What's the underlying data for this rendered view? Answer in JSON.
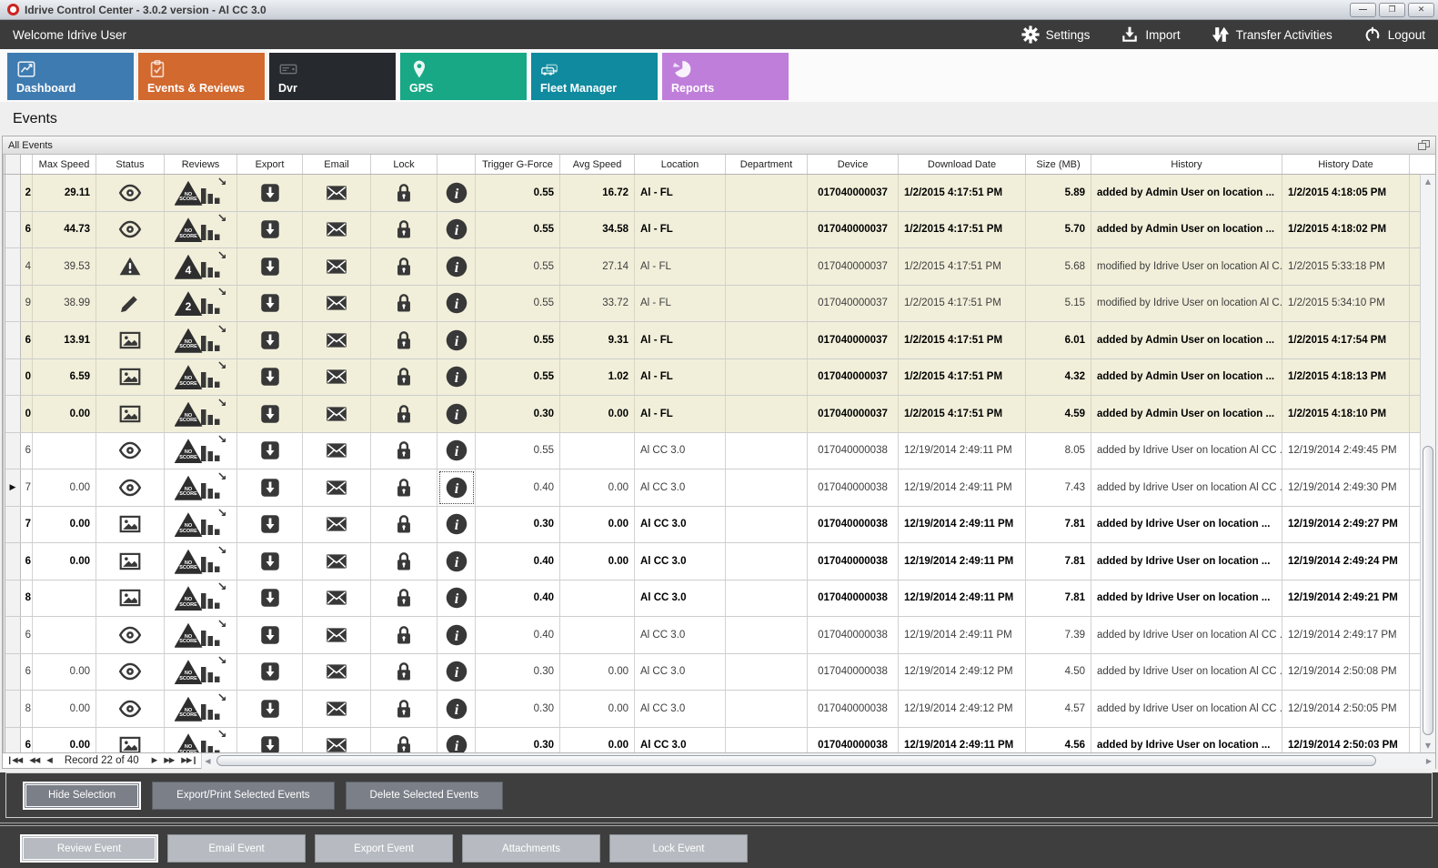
{
  "window": {
    "title": "Idrive Control Center - 3.0.2 version - Al CC 3.0",
    "controls": {
      "minimize": "—",
      "maximize": "❐",
      "close": "✕"
    }
  },
  "topbar": {
    "welcome": "Welcome Idrive User",
    "actions": [
      {
        "icon": "gear-icon",
        "label": "Settings"
      },
      {
        "icon": "import-icon",
        "label": "Import"
      },
      {
        "icon": "transfer-icon",
        "label": "Transfer Activities"
      },
      {
        "icon": "power-icon",
        "label": "Logout"
      }
    ]
  },
  "tabs": [
    {
      "label": "Dashboard",
      "color": "#3e7bb0",
      "icon": "line-chart-icon",
      "active": false
    },
    {
      "label": "Events & Reviews",
      "color": "#d2692f",
      "icon": "clipboard-check-icon",
      "active": true
    },
    {
      "label": "Dvr",
      "color": "#26292e",
      "icon": "dvr-icon",
      "active": false
    },
    {
      "label": "GPS",
      "color": "#19a886",
      "icon": "map-pin-icon",
      "active": false
    },
    {
      "label": "Fleet Manager",
      "color": "#0f8a9e",
      "icon": "vehicles-icon",
      "active": false
    },
    {
      "label": "Reports",
      "color": "#c07edb",
      "icon": "pie-chart-icon",
      "active": false
    }
  ],
  "page": {
    "heading": "Events",
    "group_title": "All Events"
  },
  "table": {
    "columns": [
      "",
      "",
      "Max Speed",
      "Status",
      "Reviews",
      "Export",
      "Email",
      "Lock",
      "",
      "Trigger G-Force",
      "Avg Speed",
      "Location",
      "Department",
      "Device",
      "Download Date",
      "Size (MB)",
      "History",
      "History Date"
    ],
    "action_icons": [
      "export-download-icon",
      "email-icon",
      "lock-icon",
      "info-icon"
    ],
    "rows": [
      {
        "id_fragment": "2",
        "max_speed": "29.11",
        "status": "eye",
        "score": "NO",
        "trigger": "0.55",
        "avg_speed": "16.72",
        "location": "Al - FL",
        "department": "",
        "device": "017040000037",
        "download_date": "1/2/2015 4:17:51 PM",
        "size": "5.89",
        "history": "added by Admin User on location ...",
        "history_date": "1/2/2015 4:18:05 PM",
        "bold": true,
        "shade": "yellow",
        "current": false
      },
      {
        "id_fragment": "6",
        "max_speed": "44.73",
        "status": "eye",
        "score": "NO",
        "trigger": "0.55",
        "avg_speed": "34.58",
        "location": "Al - FL",
        "department": "",
        "device": "017040000037",
        "download_date": "1/2/2015 4:17:51 PM",
        "size": "5.70",
        "history": "added by Admin User on location ...",
        "history_date": "1/2/2015 4:18:02 PM",
        "bold": true,
        "shade": "yellow",
        "current": false
      },
      {
        "id_fragment": "4",
        "max_speed": "39.53",
        "status": "warning",
        "score": "4",
        "trigger": "0.55",
        "avg_speed": "27.14",
        "location": "Al - FL",
        "department": "",
        "device": "017040000037",
        "download_date": "1/2/2015 4:17:51 PM",
        "size": "5.68",
        "history": "modified by Idrive User on location Al C...",
        "history_date": "1/2/2015 5:33:18 PM",
        "bold": false,
        "shade": "yellow",
        "current": false
      },
      {
        "id_fragment": "9",
        "max_speed": "38.99",
        "status": "pencil",
        "score": "2",
        "trigger": "0.55",
        "avg_speed": "33.72",
        "location": "Al - FL",
        "department": "",
        "device": "017040000037",
        "download_date": "1/2/2015 4:17:51 PM",
        "size": "5.15",
        "history": "modified by Idrive User on location Al C...",
        "history_date": "1/2/2015 5:34:10 PM",
        "bold": false,
        "shade": "yellow",
        "current": false
      },
      {
        "id_fragment": "6",
        "max_speed": "13.91",
        "status": "image",
        "score": "NO",
        "trigger": "0.55",
        "avg_speed": "9.31",
        "location": "Al - FL",
        "department": "",
        "device": "017040000037",
        "download_date": "1/2/2015 4:17:51 PM",
        "size": "6.01",
        "history": "added by Admin User on location ...",
        "history_date": "1/2/2015 4:17:54 PM",
        "bold": true,
        "shade": "yellow",
        "current": false
      },
      {
        "id_fragment": "0",
        "max_speed": "6.59",
        "status": "image",
        "score": "NO",
        "trigger": "0.55",
        "avg_speed": "1.02",
        "location": "Al - FL",
        "department": "",
        "device": "017040000037",
        "download_date": "1/2/2015 4:17:51 PM",
        "size": "4.32",
        "history": "added by Admin User on location ...",
        "history_date": "1/2/2015 4:18:13 PM",
        "bold": true,
        "shade": "yellow",
        "current": false
      },
      {
        "id_fragment": "0",
        "max_speed": "0.00",
        "status": "image",
        "score": "NO",
        "trigger": "0.30",
        "avg_speed": "0.00",
        "location": "Al - FL",
        "department": "",
        "device": "017040000037",
        "download_date": "1/2/2015 4:17:51 PM",
        "size": "4.59",
        "history": "added by Admin User on location ...",
        "history_date": "1/2/2015 4:18:10 PM",
        "bold": true,
        "shade": "yellow",
        "current": false
      },
      {
        "id_fragment": "6",
        "max_speed": "",
        "status": "eye",
        "score": "NO",
        "trigger": "0.55",
        "avg_speed": "",
        "location": "Al CC 3.0",
        "department": "",
        "device": "017040000038",
        "download_date": "12/19/2014 2:49:11 PM",
        "size": "8.05",
        "history": "added by Idrive User on location Al CC ...",
        "history_date": "12/19/2014 2:49:45 PM",
        "bold": false,
        "shade": "white",
        "current": false
      },
      {
        "id_fragment": "7",
        "max_speed": "0.00",
        "status": "eye",
        "score": "NO",
        "trigger": "0.40",
        "avg_speed": "0.00",
        "location": "Al CC 3.0",
        "department": "",
        "device": "017040000038",
        "download_date": "12/19/2014 2:49:11 PM",
        "size": "7.43",
        "history": "added by Idrive User on location Al CC ...",
        "history_date": "12/19/2014 2:49:30 PM",
        "bold": false,
        "shade": "white",
        "current": true
      },
      {
        "id_fragment": "7",
        "max_speed": "0.00",
        "status": "image",
        "score": "NO",
        "trigger": "0.30",
        "avg_speed": "0.00",
        "location": "Al CC 3.0",
        "department": "",
        "device": "017040000038",
        "download_date": "12/19/2014 2:49:11 PM",
        "size": "7.81",
        "history": "added by Idrive User on location ...",
        "history_date": "12/19/2014 2:49:27 PM",
        "bold": true,
        "shade": "white",
        "current": false
      },
      {
        "id_fragment": "6",
        "max_speed": "0.00",
        "status": "image",
        "score": "NO",
        "trigger": "0.40",
        "avg_speed": "0.00",
        "location": "Al CC 3.0",
        "department": "",
        "device": "017040000038",
        "download_date": "12/19/2014 2:49:11 PM",
        "size": "7.81",
        "history": "added by Idrive User on location ...",
        "history_date": "12/19/2014 2:49:24 PM",
        "bold": true,
        "shade": "white",
        "current": false
      },
      {
        "id_fragment": "8",
        "max_speed": "",
        "status": "image",
        "score": "NO",
        "trigger": "0.40",
        "avg_speed": "",
        "location": "Al CC 3.0",
        "department": "",
        "device": "017040000038",
        "download_date": "12/19/2014 2:49:11 PM",
        "size": "7.81",
        "history": "added by Idrive User on location ...",
        "history_date": "12/19/2014 2:49:21 PM",
        "bold": true,
        "shade": "white",
        "current": false
      },
      {
        "id_fragment": "6",
        "max_speed": "",
        "status": "eye",
        "score": "NO",
        "trigger": "0.40",
        "avg_speed": "",
        "location": "Al CC 3.0",
        "department": "",
        "device": "017040000038",
        "download_date": "12/19/2014 2:49:11 PM",
        "size": "7.39",
        "history": "added by Idrive User on location Al CC ...",
        "history_date": "12/19/2014 2:49:17 PM",
        "bold": false,
        "shade": "white",
        "current": false
      },
      {
        "id_fragment": "6",
        "max_speed": "0.00",
        "status": "eye",
        "score": "NO",
        "trigger": "0.30",
        "avg_speed": "0.00",
        "location": "Al CC 3.0",
        "department": "",
        "device": "017040000038",
        "download_date": "12/19/2014 2:49:12 PM",
        "size": "4.50",
        "history": "added by Idrive User on location Al CC ...",
        "history_date": "12/19/2014 2:50:08 PM",
        "bold": false,
        "shade": "white",
        "current": false
      },
      {
        "id_fragment": "8",
        "max_speed": "0.00",
        "status": "eye",
        "score": "NO",
        "trigger": "0.30",
        "avg_speed": "0.00",
        "location": "Al CC 3.0",
        "department": "",
        "device": "017040000038",
        "download_date": "12/19/2014 2:49:12 PM",
        "size": "4.57",
        "history": "added by Idrive User on location Al CC ...",
        "history_date": "12/19/2014 2:50:05 PM",
        "bold": false,
        "shade": "white",
        "current": false
      },
      {
        "id_fragment": "6",
        "max_speed": "0.00",
        "status": "image",
        "score": "NO",
        "trigger": "0.30",
        "avg_speed": "0.00",
        "location": "Al CC 3.0",
        "department": "",
        "device": "017040000038",
        "download_date": "12/19/2014 2:49:11 PM",
        "size": "4.56",
        "history": "added by Idrive User on location ...",
        "history_date": "12/19/2014 2:50:03 PM",
        "bold": true,
        "shade": "white",
        "current": false
      }
    ]
  },
  "pagination": {
    "record_text": "Record 22 of 40",
    "nav_icons": [
      "first-record-icon",
      "previous-page-icon",
      "previous-record-icon",
      "next-record-icon",
      "next-page-icon",
      "last-record-icon"
    ]
  },
  "footer": {
    "selection_buttons": [
      "Hide Selection",
      "Export/Print Selected Events",
      "Delete Selected Events"
    ],
    "event_buttons": [
      "Review Event",
      "Email Event",
      "Export Event",
      "Attachments",
      "Lock Event"
    ]
  },
  "colors": {
    "topbar_bg": "#3b3b3b",
    "yellow_row": "#f1efda",
    "footer_bg": "#3e3e3e",
    "selection_button": "#7b7f88",
    "event_button": "#b7bbc1",
    "icon": "#383838"
  }
}
